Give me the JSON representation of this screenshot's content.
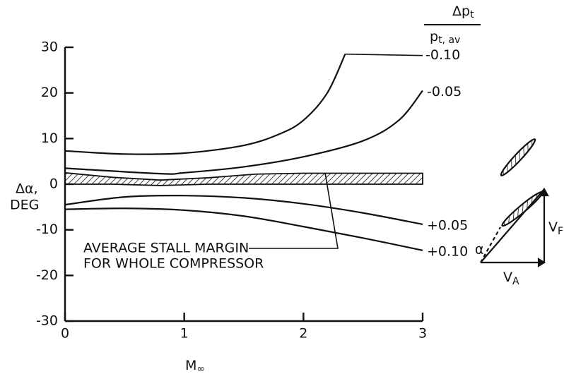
{
  "chart_data": {
    "type": "line",
    "y_label_line1": "Δα,",
    "y_label_line2": "DEG",
    "x_label": "M",
    "x_label_sub": "∞",
    "legend_title": {
      "numerator": "Δp",
      "numerator_sub": "t",
      "denominator": "p",
      "denominator_sub": "t, av"
    },
    "xlim": [
      0,
      3
    ],
    "xticks": [
      0,
      1,
      2,
      3
    ],
    "ylim": [
      -30,
      30
    ],
    "yticks": [
      30,
      20,
      10,
      0,
      -10,
      -20,
      -30
    ],
    "series": [
      {
        "name": "-0.10",
        "color": "#111111",
        "x": [
          0,
          0.5,
          1,
          1.5,
          1.8,
          2,
          2.2,
          2.35
        ],
        "values": [
          7.3,
          6.6,
          6.8,
          8.5,
          11,
          14,
          20,
          28.5
        ]
      },
      {
        "name": "-0.05",
        "color": "#111111",
        "x": [
          0,
          0.8,
          1,
          1.5,
          2,
          2.5,
          2.8,
          3
        ],
        "values": [
          3.5,
          2.3,
          2.5,
          3.8,
          6,
          9.5,
          14,
          20.5
        ]
      },
      {
        "name": "+0.05",
        "color": "#111111",
        "x": [
          0,
          0.5,
          1,
          1.5,
          2,
          2.5,
          3
        ],
        "values": [
          -4.5,
          -2.8,
          -2.5,
          -3,
          -4.3,
          -6.3,
          -8.8
        ]
      },
      {
        "name": "+0.10",
        "color": "#111111",
        "x": [
          0,
          0.5,
          1,
          1.5,
          2,
          2.5,
          3
        ],
        "values": [
          -5.5,
          -5.3,
          -5.7,
          -7,
          -9.3,
          -11.8,
          -14.5
        ]
      }
    ],
    "band": {
      "x": [
        0,
        0.4,
        0.8,
        1.2,
        1.6,
        2,
        2.5,
        3
      ],
      "upper": [
        2.5,
        1.5,
        0.9,
        1.4,
        2.2,
        2.4,
        2.4,
        2.4
      ],
      "lower": [
        0,
        0,
        -0.3,
        0,
        0,
        0,
        0,
        0
      ]
    },
    "annotation_lines": [
      "AVERAGE STALL MARGIN",
      "FOR WHOLE COMPRESSOR"
    ],
    "inset_labels": [
      {
        "text": "V",
        "sub": "F"
      },
      {
        "text": "V",
        "sub": "A"
      },
      {
        "text": "α"
      }
    ]
  }
}
